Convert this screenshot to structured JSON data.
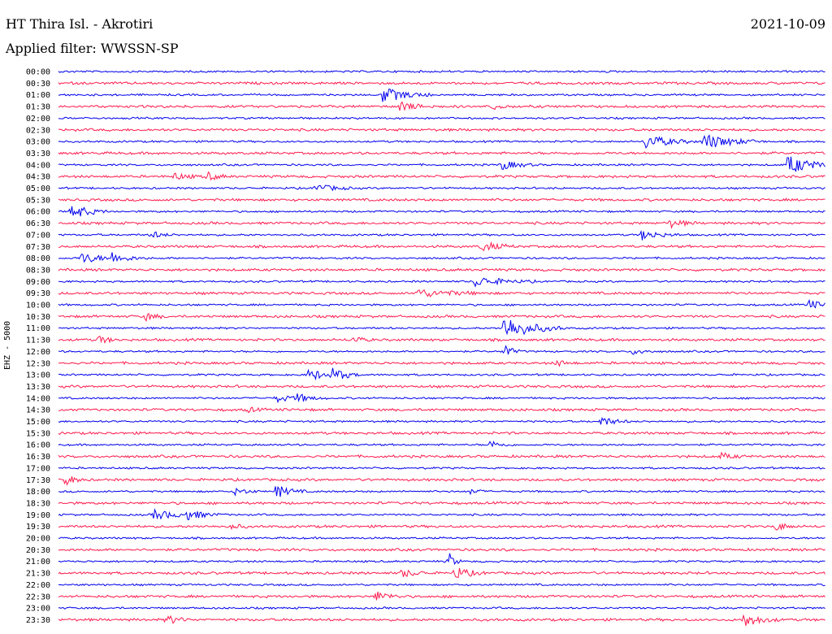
{
  "header": {
    "station": "HT Thira Isl. - Akrotiri",
    "date": "2021-10-09",
    "filter": "Applied filter: WWSSN-SP"
  },
  "channel_label": "EHZ - 5000",
  "colors": {
    "trace_a": "#0000ee",
    "trace_b": "#ff1a4d",
    "background": "#ffffff",
    "text": "#000000"
  },
  "rows": [
    {
      "time": "00:00",
      "color": "blue"
    },
    {
      "time": "00:30",
      "color": "red"
    },
    {
      "time": "01:00",
      "color": "blue"
    },
    {
      "time": "01:30",
      "color": "red"
    },
    {
      "time": "02:00",
      "color": "blue"
    },
    {
      "time": "02:30",
      "color": "red"
    },
    {
      "time": "03:00",
      "color": "blue"
    },
    {
      "time": "03:30",
      "color": "red"
    },
    {
      "time": "04:00",
      "color": "blue"
    },
    {
      "time": "04:30",
      "color": "red"
    },
    {
      "time": "05:00",
      "color": "blue"
    },
    {
      "time": "05:30",
      "color": "red"
    },
    {
      "time": "06:00",
      "color": "blue"
    },
    {
      "time": "06:30",
      "color": "red"
    },
    {
      "time": "07:00",
      "color": "blue"
    },
    {
      "time": "07:30",
      "color": "red"
    },
    {
      "time": "08:00",
      "color": "blue"
    },
    {
      "time": "08:30",
      "color": "red"
    },
    {
      "time": "09:00",
      "color": "blue"
    },
    {
      "time": "09:30",
      "color": "red"
    },
    {
      "time": "10:00",
      "color": "blue"
    },
    {
      "time": "10:30",
      "color": "red"
    },
    {
      "time": "11:00",
      "color": "blue"
    },
    {
      "time": "11:30",
      "color": "red"
    },
    {
      "time": "12:00",
      "color": "blue"
    },
    {
      "time": "12:30",
      "color": "red"
    },
    {
      "time": "13:00",
      "color": "blue"
    },
    {
      "time": "13:30",
      "color": "red"
    },
    {
      "time": "14:00",
      "color": "blue"
    },
    {
      "time": "14:30",
      "color": "red"
    },
    {
      "time": "15:00",
      "color": "blue"
    },
    {
      "time": "15:30",
      "color": "red"
    },
    {
      "time": "16:00",
      "color": "blue"
    },
    {
      "time": "16:30",
      "color": "red"
    },
    {
      "time": "17:00",
      "color": "blue"
    },
    {
      "time": "17:30",
      "color": "red"
    },
    {
      "time": "18:00",
      "color": "blue"
    },
    {
      "time": "18:30",
      "color": "red"
    },
    {
      "time": "19:00",
      "color": "blue"
    },
    {
      "time": "19:30",
      "color": "red"
    },
    {
      "time": "20:00",
      "color": "blue"
    },
    {
      "time": "20:30",
      "color": "red"
    },
    {
      "time": "21:00",
      "color": "blue"
    },
    {
      "time": "21:30",
      "color": "red"
    },
    {
      "time": "22:00",
      "color": "blue"
    },
    {
      "time": "22:30",
      "color": "red"
    },
    {
      "time": "23:00",
      "color": "blue"
    },
    {
      "time": "23:30",
      "color": "red"
    }
  ]
}
